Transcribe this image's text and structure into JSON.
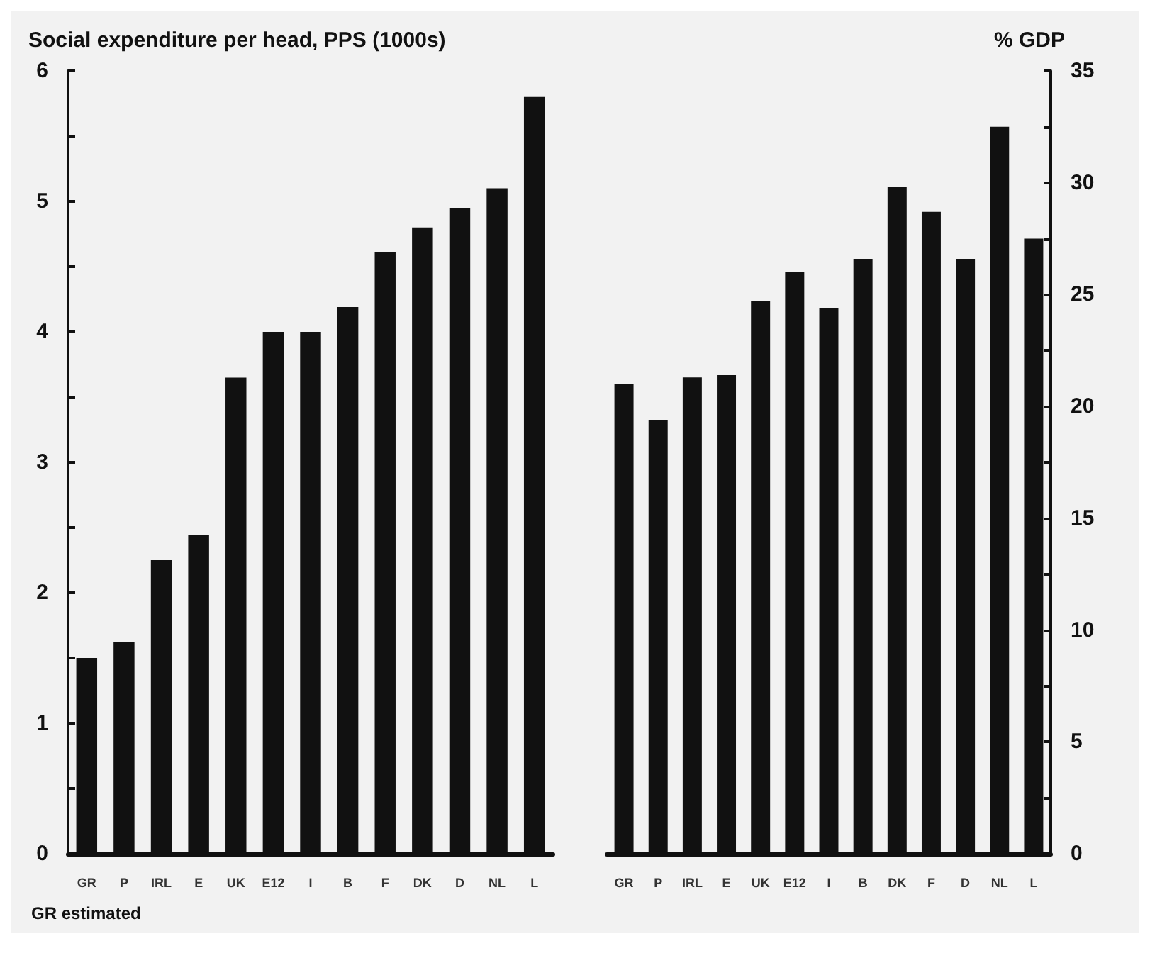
{
  "chart_data": [
    {
      "type": "bar",
      "ylabel": "Social expenditure per head, PPS (1000s)",
      "categories": [
        "GR",
        "P",
        "IRL",
        "E",
        "UK",
        "E12",
        "I",
        "B",
        "F",
        "DK",
        "D",
        "NL",
        "L"
      ],
      "series": [
        {
          "color": "#111111",
          "values": [
            1.5,
            1.62,
            2.25,
            2.44,
            3.65,
            4.0,
            4.0,
            4.19,
            4.61,
            4.8,
            4.95,
            5.1,
            5.8
          ]
        }
      ],
      "ylim": [
        0,
        6
      ],
      "yticks": [
        0,
        {
          "value": 0.5,
          "label": null
        },
        1,
        {
          "value": 1.5,
          "label": null
        },
        2,
        {
          "value": 2.5,
          "label": null
        },
        3,
        {
          "value": 3.5,
          "label": null
        },
        4,
        {
          "value": 4.5,
          "label": null
        },
        5,
        {
          "value": 5.5,
          "label": null
        },
        6
      ],
      "annotations": [
        "GR estimated"
      ]
    },
    {
      "type": "bar",
      "y2label": "% GDP",
      "categories": [
        "GR",
        "P",
        "IRL",
        "E",
        "UK",
        "E12",
        "I",
        "B",
        "DK",
        "F",
        "D",
        "NL",
        "L"
      ],
      "series": [
        {
          "color": "#111111",
          "axis": "y2",
          "values": [
            21.0,
            19.4,
            21.3,
            21.4,
            24.7,
            26.0,
            24.4,
            26.6,
            29.8,
            28.7,
            26.6,
            32.5,
            27.5
          ]
        }
      ],
      "y2lim": [
        0,
        35
      ],
      "y2ticks": [
        0,
        {
          "value": 2.5,
          "label": null
        },
        5,
        {
          "value": 7.5,
          "label": null
        },
        10,
        {
          "value": 12.5,
          "label": null
        },
        15,
        {
          "value": 17.5,
          "label": null
        },
        20,
        {
          "value": 22.5,
          "label": null
        },
        25,
        {
          "value": 27.5,
          "label": null
        },
        30,
        {
          "value": 32.5,
          "label": null
        },
        35
      ]
    }
  ]
}
